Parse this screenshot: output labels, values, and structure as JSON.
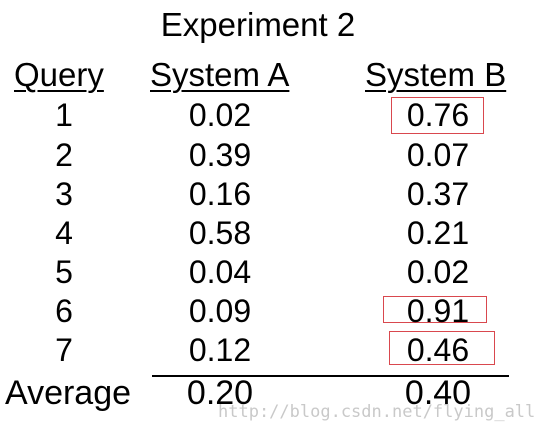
{
  "title": "Experiment 2",
  "headers": {
    "query": "Query",
    "system_a": "System A",
    "system_b": "System B"
  },
  "rows": [
    {
      "query": "1",
      "system_a": "0.02",
      "system_b": "0.76",
      "b_highlighted": true
    },
    {
      "query": "2",
      "system_a": "0.39",
      "system_b": "0.07",
      "b_highlighted": false
    },
    {
      "query": "3",
      "system_a": "0.16",
      "system_b": "0.37",
      "b_highlighted": false
    },
    {
      "query": "4",
      "system_a": "0.58",
      "system_b": "0.21",
      "b_highlighted": false
    },
    {
      "query": "5",
      "system_a": "0.04",
      "system_b": "0.02",
      "b_highlighted": false
    },
    {
      "query": "6",
      "system_a": "0.09",
      "system_b": "0.91",
      "b_highlighted": true
    },
    {
      "query": "7",
      "system_a": "0.12",
      "system_b": "0.46",
      "b_highlighted": true
    }
  ],
  "average": {
    "label": "Average",
    "system_a": "0.20",
    "system_b": "0.40"
  },
  "highlight_color": "#d9484e",
  "watermark": "http://blog.csdn.net/flying_all"
}
